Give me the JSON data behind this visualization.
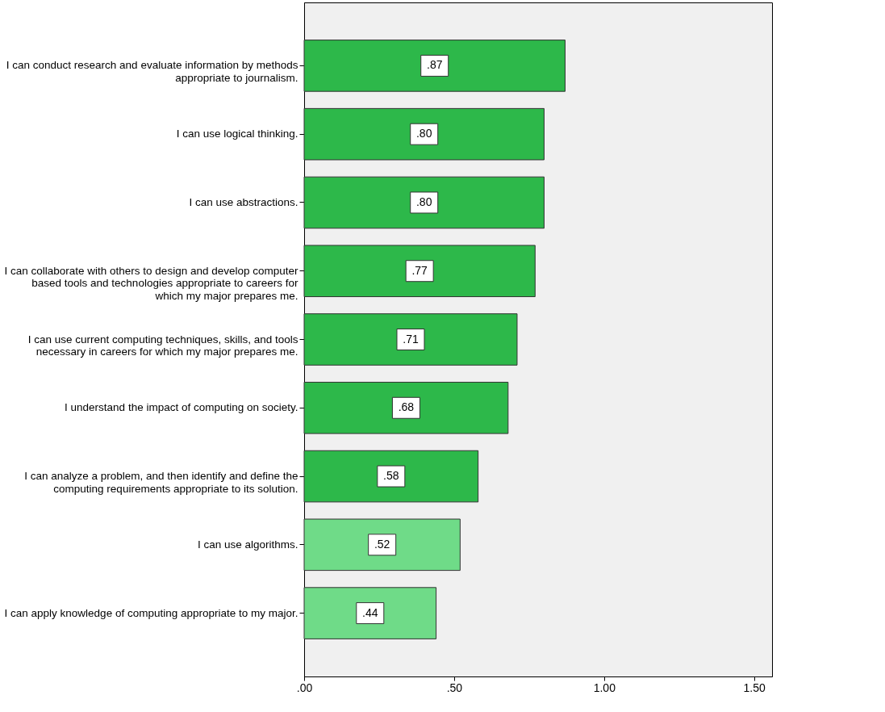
{
  "chart_data": {
    "type": "bar",
    "orientation": "horizontal",
    "categories": [
      "I can conduct research and evaluate information by methods appropriate to journalism.",
      "I can use logical thinking.",
      "I can use abstractions.",
      "I can collaborate with others to design and develop computer based tools and technologies appropriate to careers for which my major prepares me.",
      "I can use current computing techniques, skills, and tools necessary in careers for which my major prepares me.",
      "I understand the impact of computing on society.",
      "I can analyze a problem, and then identify and define the computing requirements appropriate to its solution.",
      "I can use algorithms.",
      "I can apply knowledge of computing appropriate to my major."
    ],
    "values": [
      0.87,
      0.8,
      0.8,
      0.77,
      0.71,
      0.68,
      0.58,
      0.52,
      0.44
    ],
    "value_labels": [
      ".87",
      ".80",
      ".80",
      ".77",
      ".71",
      ".68",
      ".58",
      ".52",
      ".44"
    ],
    "colors": [
      "#2db84a",
      "#2db84a",
      "#2db84a",
      "#2db84a",
      "#2db84a",
      "#2db84a",
      "#2db84a",
      "#6fdb88",
      "#6fdb88"
    ],
    "xlim": [
      0,
      1.56
    ],
    "xticks": [
      {
        "value": 0,
        "label": ".00"
      },
      {
        "value": 0.5,
        "label": ".50"
      },
      {
        "value": 1.0,
        "label": "1.00"
      },
      {
        "value": 1.5,
        "label": "1.50"
      }
    ],
    "grid": false
  }
}
